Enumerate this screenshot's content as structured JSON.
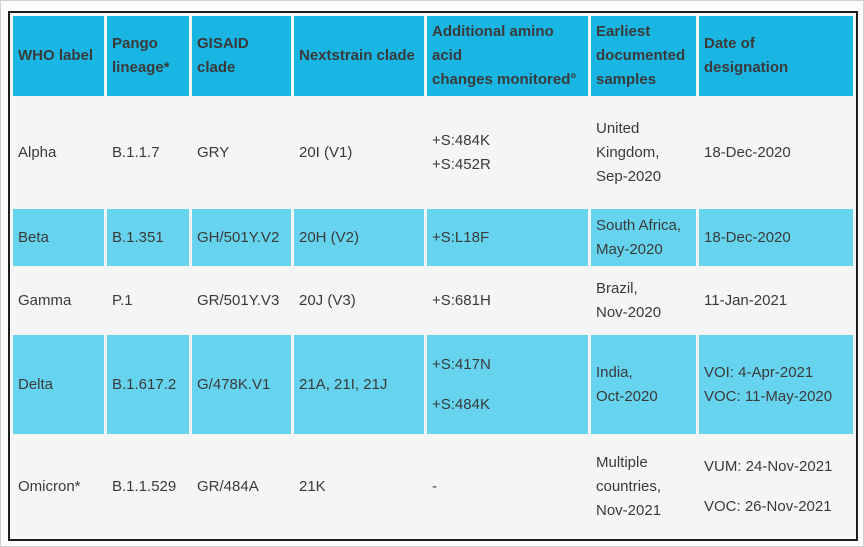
{
  "colors": {
    "header_bg": "#19b5e3",
    "highlight_bg": "#67d4ef",
    "surface": "#f4f5f5",
    "text": "#3a3a3a",
    "border": "#1d1d1d"
  },
  "table": {
    "columns": [
      {
        "id": "who-label",
        "lines": [
          "WHO label"
        ]
      },
      {
        "id": "pango-lineage",
        "lines": [
          "Pango",
          "lineage*"
        ]
      },
      {
        "id": "gisaid-clade",
        "lines": [
          "GISAID",
          "clade"
        ]
      },
      {
        "id": "nextstrain-clade",
        "lines": [
          "Nextstrain clade"
        ]
      },
      {
        "id": "amino-changes",
        "lines": [
          "Additional amino",
          "acid",
          "changes monitored°"
        ]
      },
      {
        "id": "earliest-samples",
        "lines": [
          "Earliest",
          "documented",
          "samples"
        ]
      },
      {
        "id": "designation-date",
        "lines": [
          "Date of",
          "designation"
        ]
      }
    ],
    "rows": [
      {
        "highlight": false,
        "cells": [
          [
            "Alpha"
          ],
          [
            "B.1.1.7"
          ],
          [
            "GRY"
          ],
          [
            "20I (V1)"
          ],
          [
            "+S:484K",
            "+S:452R"
          ],
          [
            "United",
            "Kingdom,",
            "Sep-2020"
          ],
          [
            "18-Dec-2020"
          ]
        ]
      },
      {
        "highlight": true,
        "cells": [
          [
            "Beta"
          ],
          [
            "B.1.351"
          ],
          [
            "GH/501Y.V2"
          ],
          [
            "20H (V2)"
          ],
          [
            "+S:L18F"
          ],
          [
            "South Africa,",
            "May-2020"
          ],
          [
            "18-Dec-2020"
          ]
        ]
      },
      {
        "highlight": false,
        "cells": [
          [
            "Gamma"
          ],
          [
            "P.1"
          ],
          [
            "GR/501Y.V3"
          ],
          [
            "20J (V3)"
          ],
          [
            "+S:681H"
          ],
          [
            "Brazil,",
            "Nov-2020"
          ],
          [
            "11-Jan-2021"
          ]
        ]
      },
      {
        "highlight": true,
        "cells": [
          [
            "Delta"
          ],
          [
            "B.1.617.2"
          ],
          [
            "G/478K.V1"
          ],
          [
            "21A, 21I, 21J"
          ],
          [
            "+S:417N",
            "",
            "+S:484K"
          ],
          [
            "India,",
            "Oct-2020"
          ],
          [
            "VOI: 4-Apr-2021",
            "VOC: 11-May-2020"
          ]
        ]
      },
      {
        "highlight": false,
        "cells": [
          [
            "Omicron*"
          ],
          [
            "B.1.1.529"
          ],
          [
            "GR/484A"
          ],
          [
            "21K"
          ],
          [
            "-"
          ],
          [
            "Multiple",
            "countries,",
            "Nov-2021"
          ],
          [
            "VUM: 24-Nov-2021",
            "",
            "VOC: 26-Nov-2021"
          ]
        ]
      }
    ]
  }
}
